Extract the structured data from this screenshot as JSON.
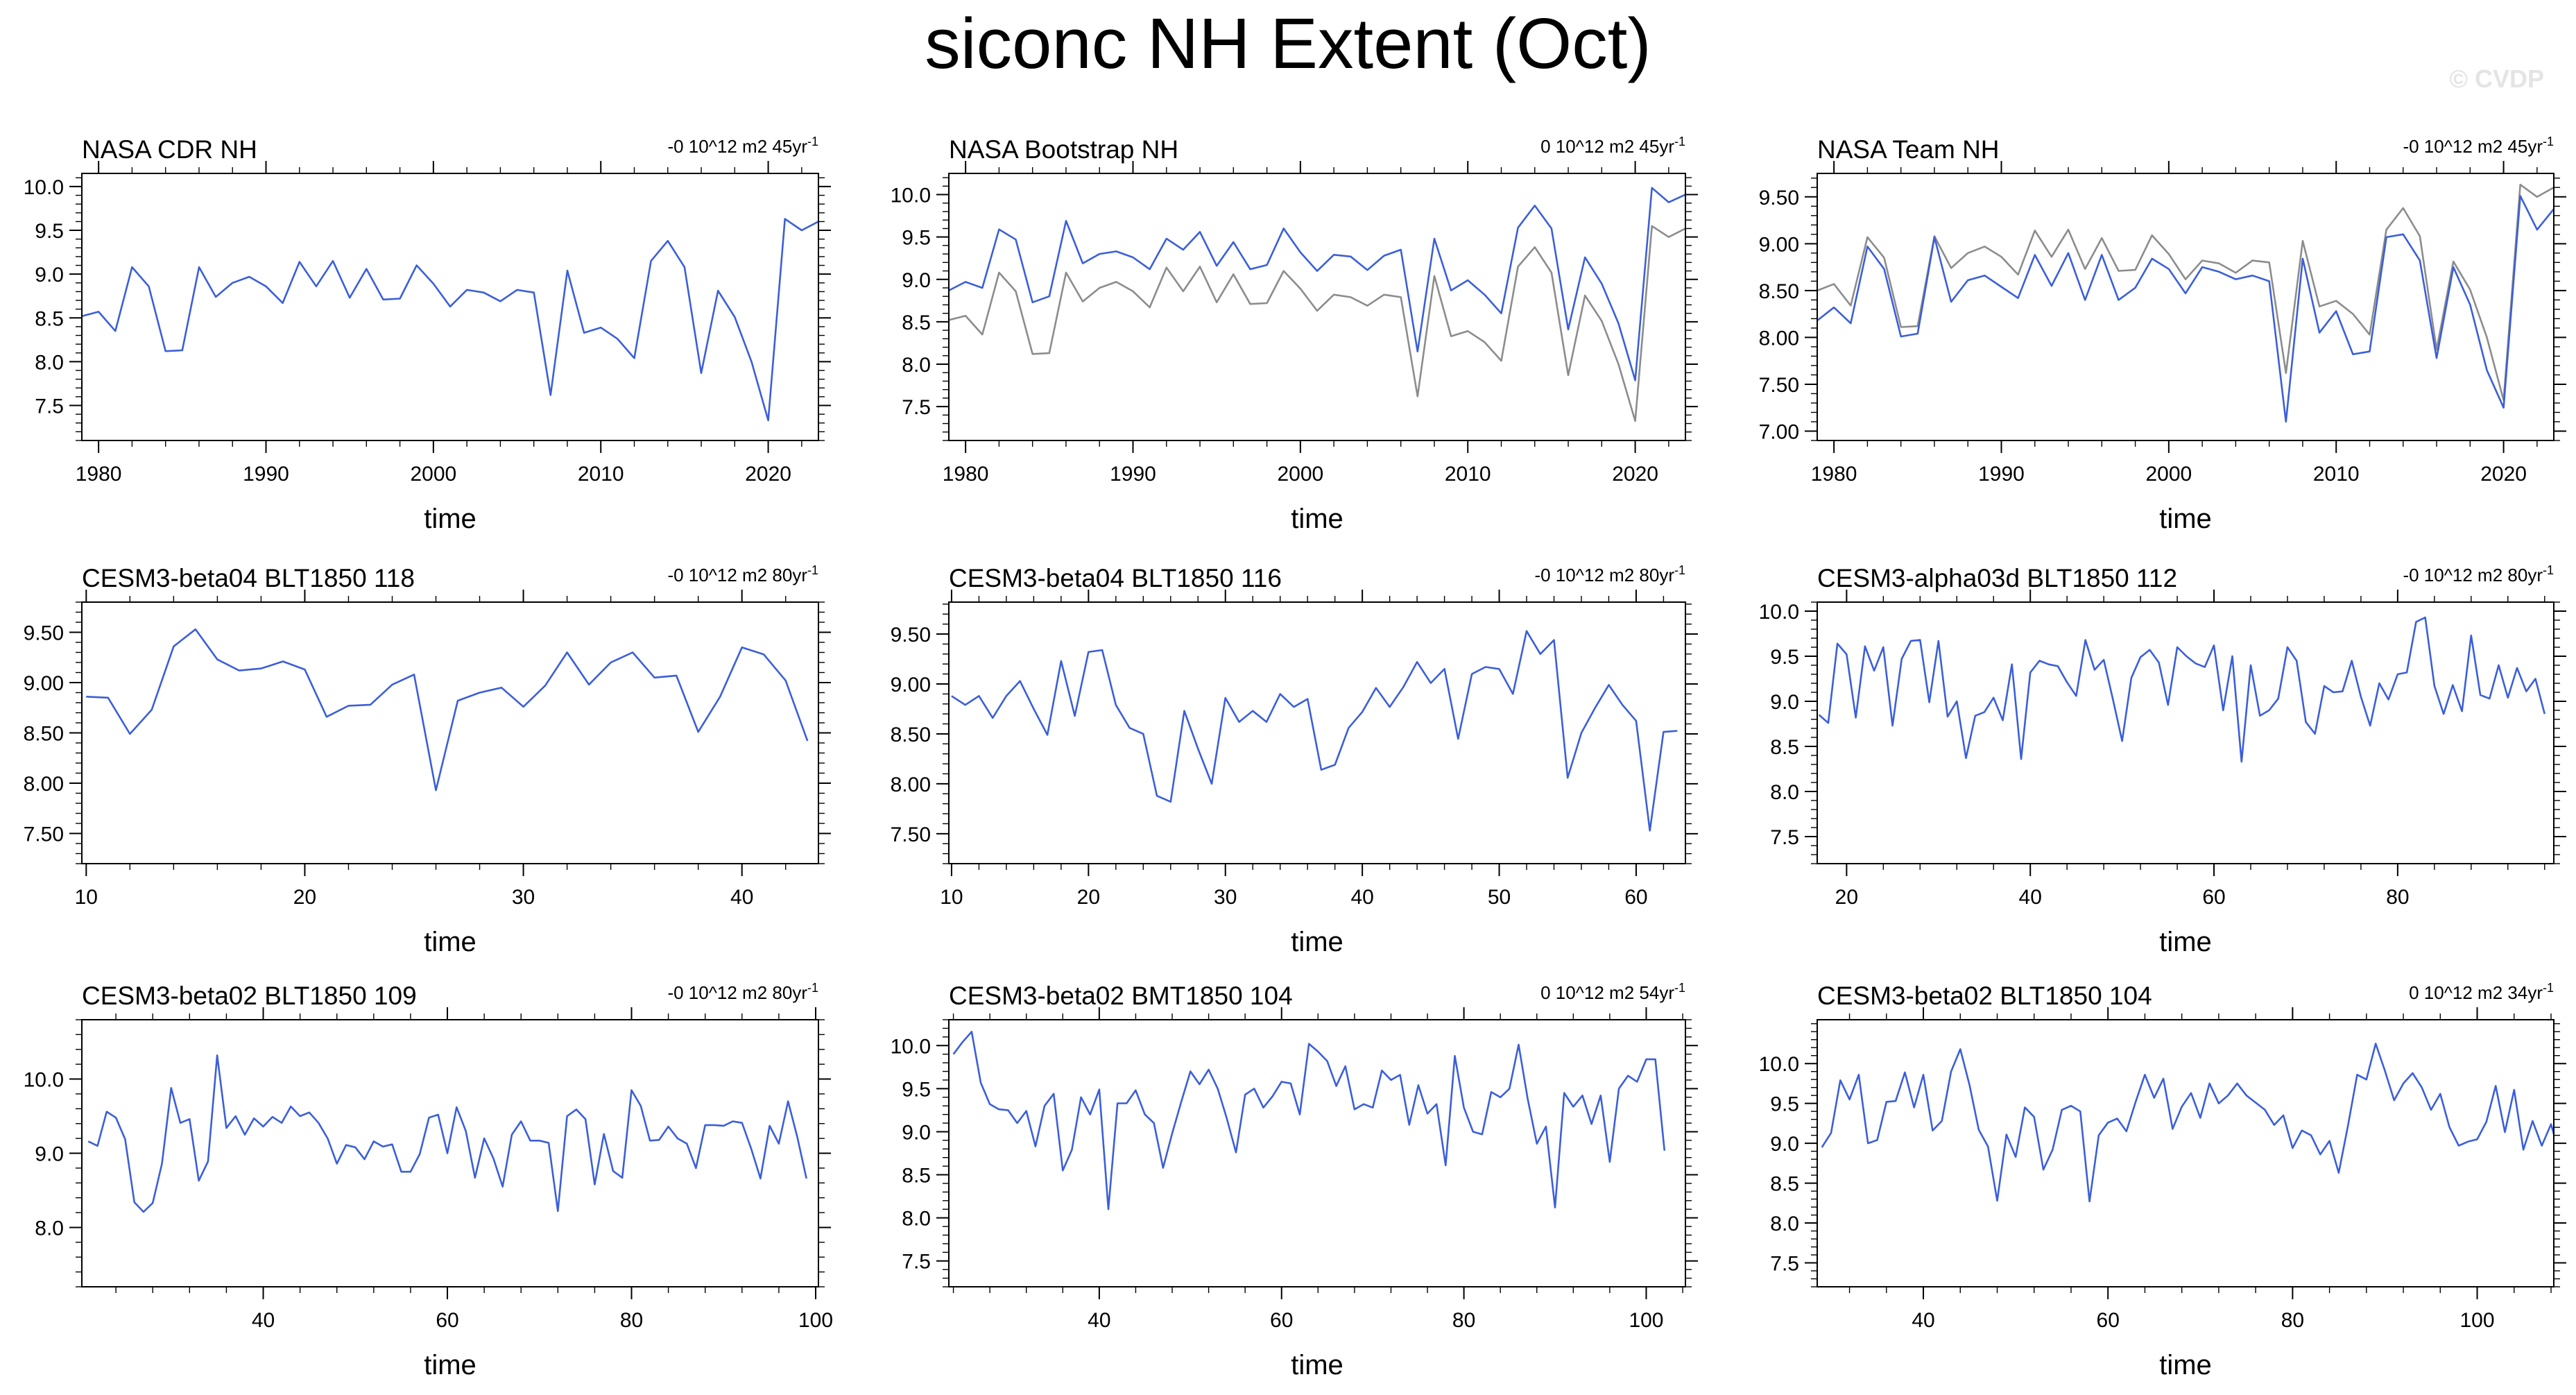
{
  "title": "siconc NH Extent (Oct)",
  "watermark": "© CVDP",
  "colors": {
    "primary": "#3b5fd9",
    "reference": "#8c8c8c",
    "axis": "#000000"
  },
  "chart_data": [
    {
      "type": "line",
      "title": "NASA CDR NH",
      "trend": "-0 10^12 m2 45yr",
      "trend_sup": "-1",
      "xlabel": "time",
      "xlim": [
        1979,
        2023
      ],
      "ylim": [
        7.1,
        10.15
      ],
      "xticks": [
        1980,
        1990,
        2000,
        2010,
        2020
      ],
      "yticks": [
        7.5,
        8.0,
        8.5,
        9.0,
        9.5,
        10.0
      ],
      "ytick_labels": [
        "7.5",
        "8.0",
        "8.5",
        "9.0",
        "9.5",
        "10.0"
      ],
      "x_start": 1979,
      "series": [
        {
          "role": "primary",
          "values": [
            8.52,
            8.57,
            8.35,
            9.08,
            8.86,
            8.12,
            8.13,
            9.08,
            8.74,
            8.9,
            8.97,
            8.86,
            8.67,
            9.14,
            8.86,
            9.15,
            8.73,
            9.06,
            8.71,
            8.72,
            9.1,
            8.89,
            8.63,
            8.82,
            8.79,
            8.69,
            8.82,
            8.79,
            7.62,
            9.04,
            8.33,
            8.39,
            8.26,
            8.04,
            9.15,
            9.38,
            9.08,
            7.87,
            8.81,
            8.51,
            8.0,
            7.33,
            9.63,
            9.5,
            9.6
          ]
        }
      ]
    },
    {
      "type": "line",
      "title": "NASA Bootstrap NH",
      "trend": "0 10^12 m2 45yr",
      "trend_sup": "-1",
      "xlabel": "time",
      "xlim": [
        1979,
        2023
      ],
      "ylim": [
        7.1,
        10.25
      ],
      "xticks": [
        1980,
        1990,
        2000,
        2010,
        2020
      ],
      "yticks": [
        7.5,
        8.0,
        8.5,
        9.0,
        9.5,
        10.0
      ],
      "ytick_labels": [
        "7.5",
        "8.0",
        "8.5",
        "9.0",
        "9.5",
        "10.0"
      ],
      "x_start": 1979,
      "series": [
        {
          "role": "primary",
          "values": [
            8.87,
            8.97,
            8.9,
            9.59,
            9.47,
            8.73,
            8.8,
            9.69,
            9.19,
            9.3,
            9.33,
            9.26,
            9.12,
            9.48,
            9.35,
            9.56,
            9.16,
            9.44,
            9.12,
            9.17,
            9.6,
            9.32,
            9.1,
            9.29,
            9.27,
            9.11,
            9.28,
            9.35,
            8.15,
            9.48,
            8.87,
            8.99,
            8.82,
            8.6,
            9.61,
            9.87,
            9.6,
            8.41,
            9.26,
            8.95,
            8.48,
            7.81,
            10.08,
            9.91,
            10.0
          ]
        },
        {
          "role": "reference",
          "values": [
            8.52,
            8.57,
            8.35,
            9.08,
            8.86,
            8.12,
            8.13,
            9.08,
            8.74,
            8.9,
            8.97,
            8.86,
            8.67,
            9.14,
            8.86,
            9.15,
            8.73,
            9.06,
            8.71,
            8.72,
            9.1,
            8.89,
            8.63,
            8.82,
            8.79,
            8.69,
            8.82,
            8.79,
            7.62,
            9.04,
            8.33,
            8.39,
            8.26,
            8.04,
            9.15,
            9.38,
            9.08,
            7.87,
            8.81,
            8.51,
            8.0,
            7.33,
            9.63,
            9.5,
            9.6
          ]
        }
      ]
    },
    {
      "type": "line",
      "title": "NASA Team NH",
      "trend": "-0 10^12 m2 45yr",
      "trend_sup": "-1",
      "xlabel": "time",
      "xlim": [
        1979,
        2023
      ],
      "ylim": [
        6.9,
        9.75
      ],
      "xticks": [
        1980,
        1990,
        2000,
        2010,
        2020
      ],
      "yticks": [
        7.0,
        7.5,
        8.0,
        8.5,
        9.0,
        9.5
      ],
      "ytick_labels": [
        "7.00",
        "7.50",
        "8.00",
        "8.50",
        "9.00",
        "9.50"
      ],
      "x_start": 1979,
      "series": [
        {
          "role": "primary",
          "values": [
            8.18,
            8.32,
            8.15,
            8.97,
            8.73,
            8.01,
            8.04,
            9.07,
            8.38,
            8.61,
            8.66,
            8.54,
            8.42,
            8.88,
            8.55,
            8.9,
            8.4,
            8.88,
            8.4,
            8.53,
            8.84,
            8.73,
            8.47,
            8.75,
            8.7,
            8.62,
            8.66,
            8.6,
            7.1,
            8.84,
            8.05,
            8.28,
            7.82,
            7.85,
            9.07,
            9.1,
            8.82,
            7.78,
            8.75,
            8.35,
            7.65,
            7.25,
            9.51,
            9.15,
            9.37
          ]
        },
        {
          "role": "reference",
          "values": [
            8.5,
            8.57,
            8.34,
            9.07,
            8.85,
            8.11,
            8.12,
            9.08,
            8.74,
            8.9,
            8.97,
            8.86,
            8.67,
            9.14,
            8.86,
            9.15,
            8.73,
            9.06,
            8.71,
            8.72,
            9.09,
            8.89,
            8.62,
            8.82,
            8.79,
            8.69,
            8.82,
            8.8,
            7.62,
            9.03,
            8.33,
            8.39,
            8.25,
            8.03,
            9.15,
            9.38,
            9.08,
            7.87,
            8.81,
            8.51,
            8.0,
            7.33,
            9.63,
            9.5,
            9.6
          ]
        }
      ]
    },
    {
      "type": "line",
      "title": "CESM3-beta04 BLT1850 118",
      "trend": "-0 10^12 m2 80yr",
      "trend_sup": "-1",
      "xlabel": "time",
      "xlim": [
        9.8,
        43.5
      ],
      "ylim": [
        7.2,
        9.8
      ],
      "xticks": [
        10,
        20,
        30,
        40
      ],
      "yticks": [
        7.5,
        8.0,
        8.5,
        9.0,
        9.5
      ],
      "ytick_labels": [
        "7.50",
        "8.00",
        "8.50",
        "9.00",
        "9.50"
      ],
      "x_start": 10,
      "series": [
        {
          "role": "primary",
          "values": [
            8.86,
            8.85,
            8.49,
            8.73,
            9.36,
            9.53,
            9.23,
            9.12,
            9.14,
            9.21,
            9.13,
            8.66,
            8.77,
            8.78,
            8.98,
            9.08,
            7.93,
            8.82,
            8.9,
            8.95,
            8.76,
            8.97,
            9.3,
            8.98,
            9.2,
            9.3,
            9.05,
            9.07,
            8.51,
            8.86,
            9.35,
            9.28,
            9.02,
            8.42
          ]
        }
      ]
    },
    {
      "type": "line",
      "title": "CESM3-beta04 BLT1850 116",
      "trend": "-0 10^12 m2 80yr",
      "trend_sup": "-1",
      "xlabel": "time",
      "xlim": [
        9.8,
        63.6
      ],
      "ylim": [
        7.2,
        9.82
      ],
      "xticks": [
        10,
        20,
        30,
        40,
        50,
        60
      ],
      "yticks": [
        7.5,
        8.0,
        8.5,
        9.0,
        9.5
      ],
      "ytick_labels": [
        "7.50",
        "8.00",
        "8.50",
        "9.00",
        "9.50"
      ],
      "x_start": 10,
      "series": [
        {
          "role": "primary",
          "values": [
            8.88,
            8.79,
            8.88,
            8.66,
            8.88,
            9.03,
            8.75,
            8.49,
            9.23,
            8.68,
            9.32,
            9.34,
            8.79,
            8.56,
            8.5,
            7.88,
            7.82,
            8.73,
            8.35,
            8.0,
            8.86,
            8.62,
            8.73,
            8.62,
            8.9,
            8.77,
            8.85,
            8.14,
            8.19,
            8.56,
            8.72,
            8.96,
            8.77,
            8.97,
            9.22,
            9.01,
            9.15,
            8.45,
            9.1,
            9.17,
            9.15,
            8.9,
            9.53,
            9.3,
            9.44,
            8.06,
            8.51,
            8.76,
            8.99,
            8.79,
            8.63,
            7.53,
            8.52,
            8.53
          ]
        }
      ]
    },
    {
      "type": "line",
      "title": "CESM3-alpha03d BLT1850 112",
      "trend": "-0 10^12 m2 80yr",
      "trend_sup": "-1",
      "xlabel": "time",
      "xlim": [
        16.8,
        97
      ],
      "ylim": [
        7.2,
        10.1
      ],
      "xticks": [
        20,
        40,
        60,
        80
      ],
      "yticks": [
        7.5,
        8.0,
        8.5,
        9.0,
        9.5,
        10.0
      ],
      "ytick_labels": [
        "7.5",
        "8.0",
        "8.5",
        "9.0",
        "9.5",
        "10.0"
      ],
      "x_start": 17,
      "series": [
        {
          "role": "primary",
          "values": [
            8.85,
            8.76,
            9.64,
            9.52,
            8.82,
            9.61,
            9.34,
            9.6,
            8.73,
            9.47,
            9.67,
            9.68,
            8.99,
            9.67,
            8.83,
            9.0,
            8.37,
            8.84,
            8.88,
            9.04,
            8.79,
            9.41,
            8.36,
            9.32,
            9.45,
            9.41,
            9.39,
            9.21,
            9.06,
            9.68,
            9.35,
            9.46,
            9.02,
            8.56,
            9.26,
            9.49,
            9.57,
            9.43,
            8.96,
            9.6,
            9.5,
            9.42,
            9.38,
            9.62,
            8.9,
            9.5,
            8.33,
            9.4,
            8.84,
            8.9,
            9.03,
            9.6,
            9.45,
            8.77,
            8.64,
            9.17,
            9.1,
            9.11,
            9.45,
            9.05,
            8.73,
            9.2,
            9.02,
            9.3,
            9.32,
            9.88,
            9.93,
            9.17,
            8.86,
            9.18,
            8.89,
            9.73,
            9.07,
            9.03,
            9.4,
            9.04,
            9.37,
            9.11,
            9.25,
            8.86
          ]
        }
      ]
    },
    {
      "type": "line",
      "title": "CESM3-beta02 BLT1850 109",
      "trend": "-0 10^12 m2 80yr",
      "trend_sup": "-1",
      "xlabel": "time",
      "xlim": [
        20.3,
        100.3
      ],
      "ylim": [
        7.2,
        10.8
      ],
      "xticks": [
        40,
        60,
        80,
        100
      ],
      "yticks": [
        8.0,
        9.0,
        10.0
      ],
      "ytick_labels": [
        "8.0",
        "9.0",
        "10.0"
      ],
      "x_start": 21,
      "series": [
        {
          "role": "primary",
          "values": [
            9.16,
            9.1,
            9.56,
            9.48,
            9.19,
            8.34,
            8.21,
            8.33,
            8.86,
            9.88,
            9.41,
            9.46,
            8.63,
            8.89,
            10.32,
            9.34,
            9.5,
            9.25,
            9.47,
            9.36,
            9.49,
            9.41,
            9.63,
            9.5,
            9.55,
            9.41,
            9.2,
            8.86,
            9.11,
            9.08,
            8.92,
            9.16,
            9.09,
            9.12,
            8.75,
            8.75,
            8.99,
            9.48,
            9.52,
            9.0,
            9.62,
            9.3,
            8.67,
            9.2,
            8.93,
            8.55,
            9.25,
            9.43,
            9.17,
            9.17,
            9.14,
            8.22,
            9.5,
            9.59,
            9.46,
            8.58,
            9.26,
            8.76,
            8.67,
            9.85,
            9.64,
            9.17,
            9.18,
            9.36,
            9.2,
            9.13,
            8.8,
            9.38,
            9.38,
            9.37,
            9.43,
            9.41,
            9.06,
            8.66,
            9.37,
            9.13,
            9.7,
            9.22,
            8.66
          ]
        }
      ]
    },
    {
      "type": "line",
      "title": "CESM3-beta02 BMT1850 104",
      "trend": "0 10^12 m2 54yr",
      "trend_sup": "-1",
      "xlabel": "time",
      "xlim": [
        23.5,
        104.3
      ],
      "ylim": [
        7.2,
        10.3
      ],
      "xticks": [
        40,
        60,
        80,
        100
      ],
      "yticks": [
        7.5,
        8.0,
        8.5,
        9.0,
        9.5,
        10.0
      ],
      "ytick_labels": [
        "7.5",
        "8.0",
        "8.5",
        "9.0",
        "9.5",
        "10.0"
      ],
      "x_start": 24,
      "series": [
        {
          "role": "primary",
          "values": [
            9.9,
            10.04,
            10.16,
            9.57,
            9.32,
            9.26,
            9.25,
            9.1,
            9.24,
            8.83,
            9.3,
            9.44,
            8.55,
            8.79,
            9.4,
            9.2,
            9.49,
            8.1,
            9.33,
            9.33,
            9.48,
            9.2,
            9.1,
            8.58,
            8.98,
            9.35,
            9.7,
            9.55,
            9.72,
            9.5,
            9.15,
            8.76,
            9.43,
            9.5,
            9.28,
            9.41,
            9.58,
            9.56,
            9.2,
            10.02,
            9.93,
            9.82,
            9.53,
            9.76,
            9.26,
            9.32,
            9.28,
            9.71,
            9.6,
            9.66,
            9.08,
            9.54,
            9.21,
            9.32,
            8.61,
            9.88,
            9.28,
            9.0,
            8.97,
            9.46,
            9.4,
            9.5,
            10.01,
            9.38,
            8.86,
            9.06,
            8.12,
            9.45,
            9.29,
            9.42,
            9.09,
            9.42,
            8.65,
            9.5,
            9.65,
            9.58,
            9.84,
            9.84,
            8.78
          ]
        }
      ]
    },
    {
      "type": "line",
      "title": "CESM3-beta02 BLT1850 104",
      "trend": "0 10^12 m2 34yr",
      "trend_sup": "-1",
      "xlabel": "time",
      "xlim": [
        28.5,
        108.3
      ],
      "ylim": [
        7.2,
        10.55
      ],
      "xticks": [
        40,
        60,
        80,
        100
      ],
      "yticks": [
        7.5,
        8.0,
        8.5,
        9.0,
        9.5,
        10.0
      ],
      "ytick_labels": [
        "7.5",
        "8.0",
        "8.5",
        "9.0",
        "9.5",
        "10.0"
      ],
      "x_start": 29,
      "series": [
        {
          "role": "primary",
          "values": [
            8.95,
            9.13,
            9.79,
            9.55,
            9.86,
            9.0,
            9.04,
            9.52,
            9.53,
            9.89,
            9.45,
            9.86,
            9.16,
            9.28,
            9.9,
            10.18,
            9.73,
            9.17,
            8.96,
            8.28,
            9.11,
            8.83,
            9.45,
            9.33,
            8.67,
            8.92,
            9.42,
            9.47,
            9.4,
            8.27,
            9.1,
            9.26,
            9.31,
            9.15,
            9.52,
            9.86,
            9.57,
            9.81,
            9.18,
            9.46,
            9.63,
            9.32,
            9.75,
            9.5,
            9.6,
            9.75,
            9.6,
            9.51,
            9.42,
            9.23,
            9.35,
            8.94,
            9.16,
            9.1,
            8.86,
            9.03,
            8.63,
            9.22,
            9.86,
            9.8,
            10.25,
            9.91,
            9.54,
            9.75,
            9.88,
            9.7,
            9.42,
            9.62,
            9.2,
            8.97,
            9.02,
            9.05,
            9.27,
            9.72,
            9.14,
            9.67,
            8.92,
            9.28,
            8.97,
            9.24,
            8.83
          ]
        }
      ]
    }
  ]
}
